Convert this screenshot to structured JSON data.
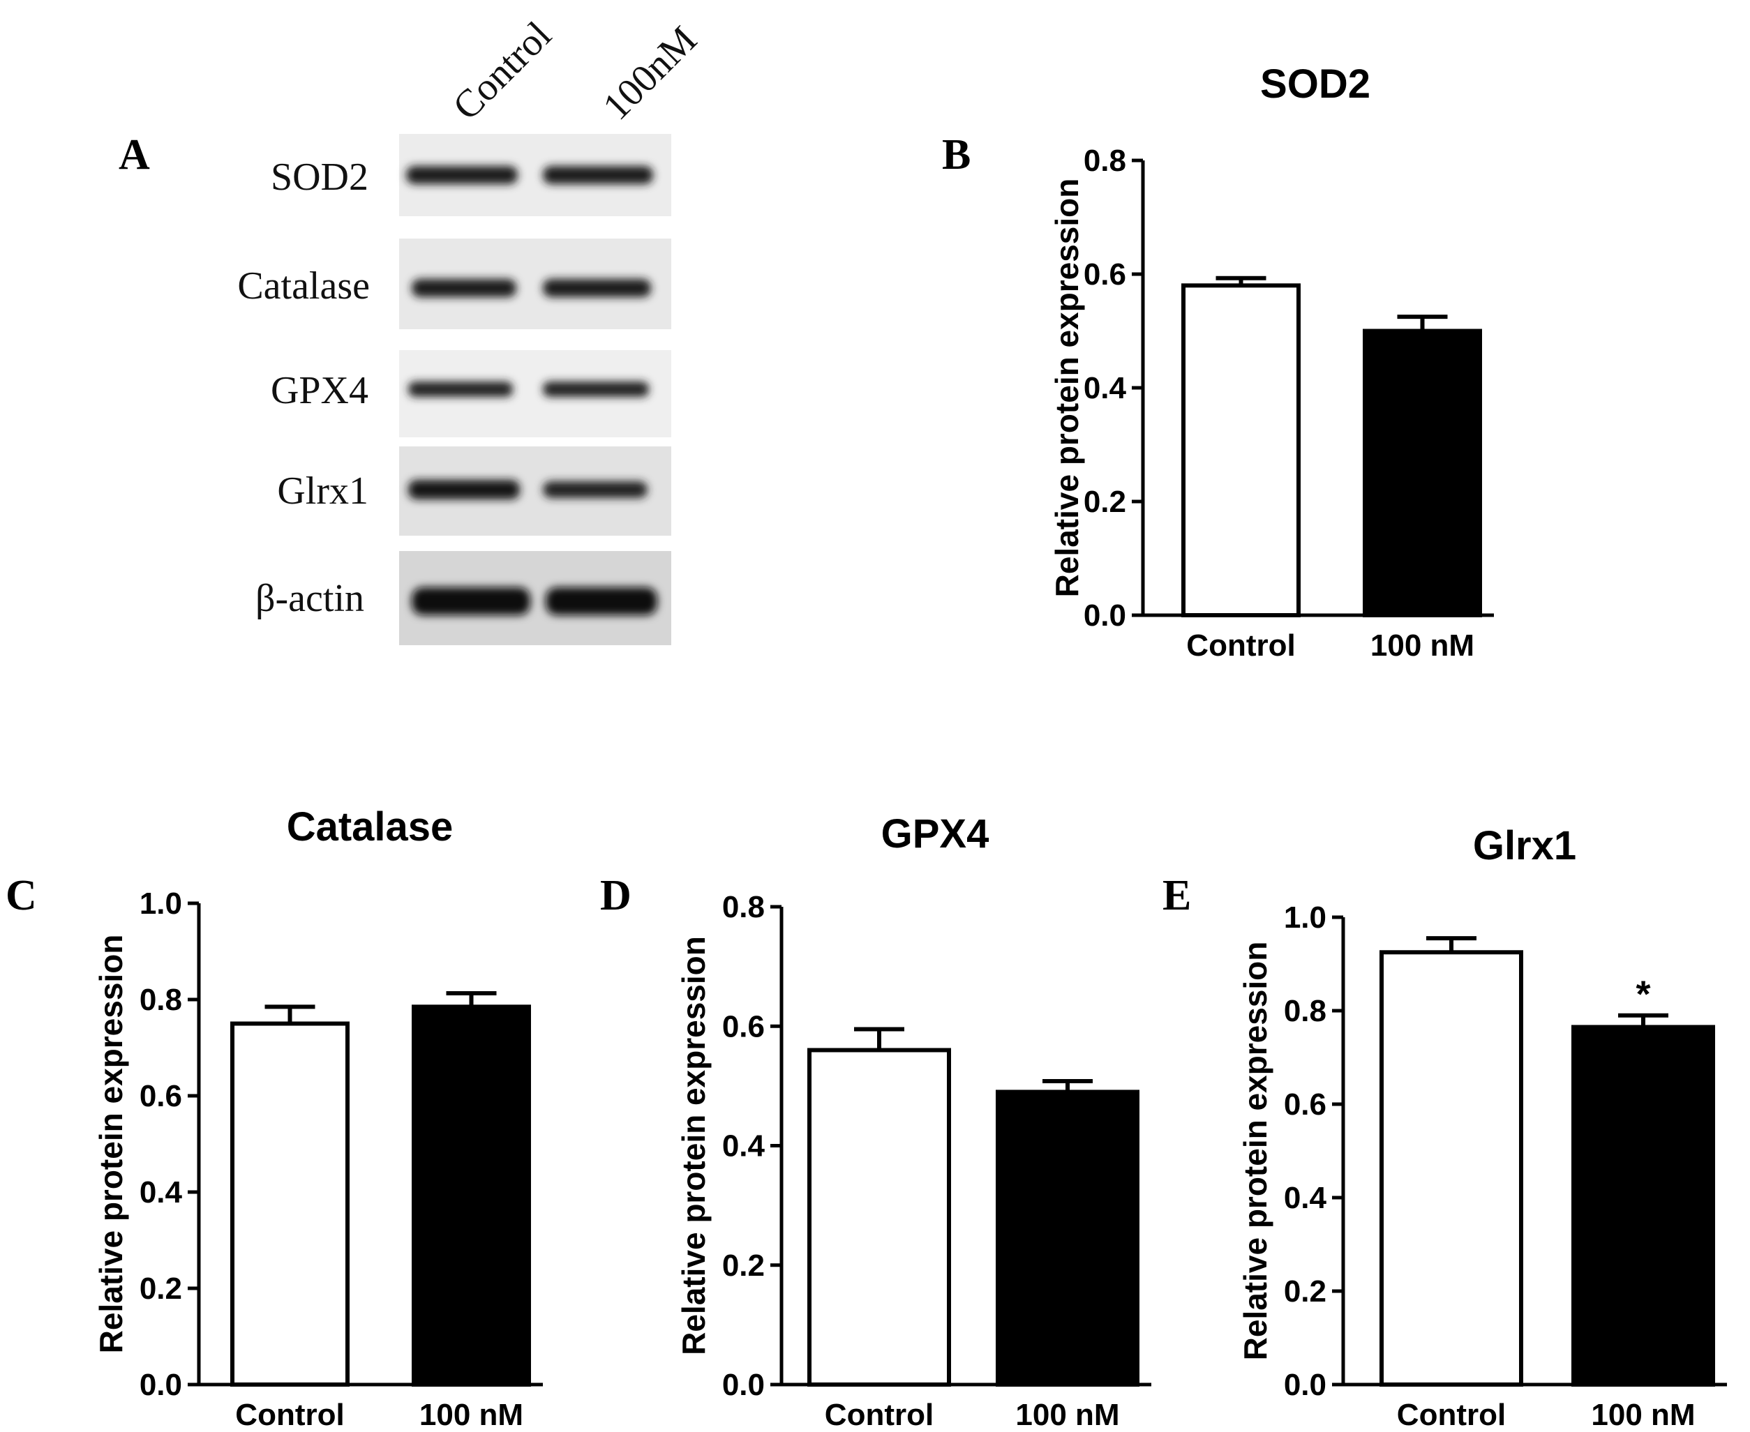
{
  "panels": {
    "A": "A",
    "B": "B",
    "C": "C",
    "D": "D",
    "E": "E"
  },
  "blot": {
    "lanes": [
      "Control",
      "100nM"
    ],
    "proteins": [
      "SOD2",
      "Catalase",
      "GPX4",
      "Glrx1",
      "β-actin"
    ]
  },
  "chart_data": [
    {
      "panel": "B",
      "type": "bar",
      "title": "SOD2",
      "ylabel": "Relative protein expression",
      "categories": [
        "Control",
        "100 nM"
      ],
      "values": [
        0.58,
        0.5
      ],
      "errors": [
        0.013,
        0.025
      ],
      "colors": [
        "#ffffff",
        "#000000"
      ],
      "ylim": [
        0,
        0.8
      ],
      "yticks": [
        "0.0",
        "0.2",
        "0.4",
        "0.6",
        "0.8"
      ],
      "significance": [
        "",
        ""
      ]
    },
    {
      "panel": "C",
      "type": "bar",
      "title": "Catalase",
      "ylabel": "Relative protein expression",
      "categories": [
        "Control",
        "100 nM"
      ],
      "values": [
        0.75,
        0.785
      ],
      "errors": [
        0.035,
        0.028
      ],
      "colors": [
        "#ffffff",
        "#000000"
      ],
      "ylim": [
        0,
        1.0
      ],
      "yticks": [
        "0.0",
        "0.2",
        "0.4",
        "0.6",
        "0.8",
        "1.0"
      ],
      "significance": [
        "",
        ""
      ]
    },
    {
      "panel": "D",
      "type": "bar",
      "title": "GPX4",
      "ylabel": "Relative protein expression",
      "categories": [
        "Control",
        "100 nM"
      ],
      "values": [
        0.56,
        0.49
      ],
      "errors": [
        0.035,
        0.018
      ],
      "colors": [
        "#ffffff",
        "#000000"
      ],
      "ylim": [
        0,
        0.8
      ],
      "yticks": [
        "0.0",
        "0.2",
        "0.4",
        "0.6",
        "0.8"
      ],
      "significance": [
        "",
        ""
      ]
    },
    {
      "panel": "E",
      "type": "bar",
      "title": "Glrx1",
      "ylabel": "Relative protein expression",
      "categories": [
        "Control",
        "100 nM"
      ],
      "values": [
        0.925,
        0.765
      ],
      "errors": [
        0.03,
        0.025
      ],
      "colors": [
        "#ffffff",
        "#000000"
      ],
      "ylim": [
        0,
        1.0
      ],
      "yticks": [
        "0.0",
        "0.2",
        "0.4",
        "0.6",
        "0.8",
        "1.0"
      ],
      "significance": [
        "",
        "*"
      ]
    }
  ]
}
